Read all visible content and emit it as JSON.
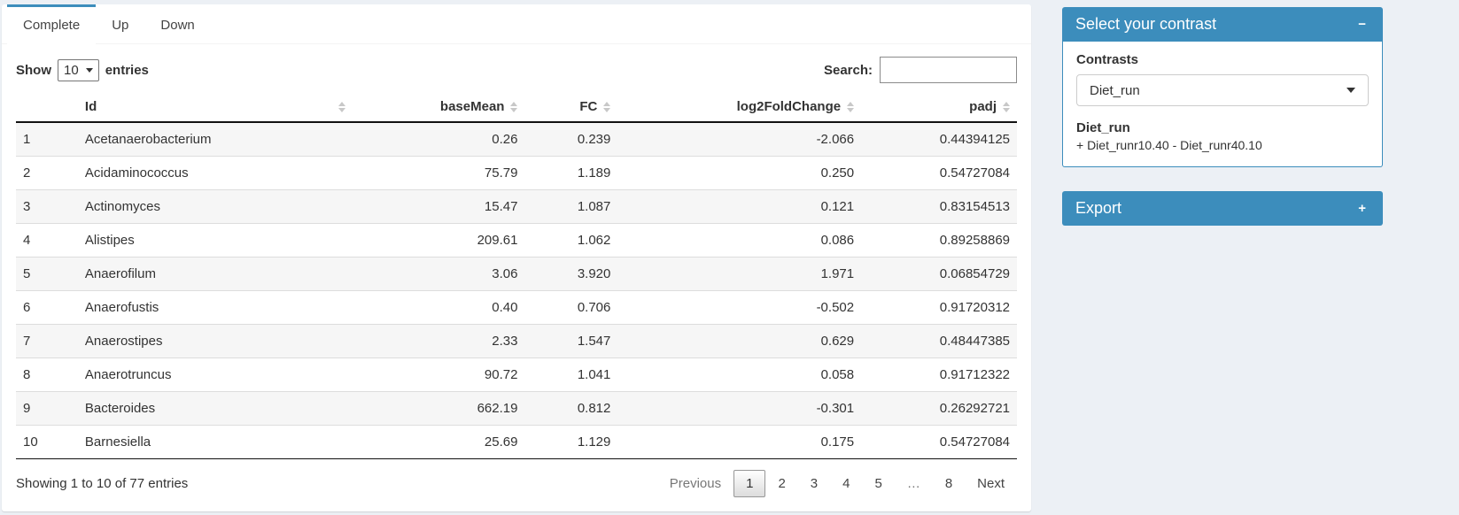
{
  "colors": {
    "accent": "#3c8dbc",
    "page_bg": "#ecf0f5",
    "stripe": "#f6f6f6"
  },
  "tabs": [
    {
      "label": "Complete",
      "active": true
    },
    {
      "label": "Up",
      "active": false
    },
    {
      "label": "Down",
      "active": false
    }
  ],
  "table_controls": {
    "show_label": "Show",
    "page_length": "10",
    "entries_label": "entries",
    "search_label": "Search:",
    "search_value": ""
  },
  "table": {
    "columns": [
      "Id",
      "baseMean",
      "FC",
      "log2FoldChange",
      "padj"
    ],
    "rows": [
      {
        "n": "1",
        "id": "Acetanaerobacterium",
        "baseMean": "0.26",
        "fc": "0.239",
        "log2fc": "-2.066",
        "padj": "0.44394125"
      },
      {
        "n": "2",
        "id": "Acidaminococcus",
        "baseMean": "75.79",
        "fc": "1.189",
        "log2fc": "0.250",
        "padj": "0.54727084"
      },
      {
        "n": "3",
        "id": "Actinomyces",
        "baseMean": "15.47",
        "fc": "1.087",
        "log2fc": "0.121",
        "padj": "0.83154513"
      },
      {
        "n": "4",
        "id": "Alistipes",
        "baseMean": "209.61",
        "fc": "1.062",
        "log2fc": "0.086",
        "padj": "0.89258869"
      },
      {
        "n": "5",
        "id": "Anaerofilum",
        "baseMean": "3.06",
        "fc": "3.920",
        "log2fc": "1.971",
        "padj": "0.06854729"
      },
      {
        "n": "6",
        "id": "Anaerofustis",
        "baseMean": "0.40",
        "fc": "0.706",
        "log2fc": "-0.502",
        "padj": "0.91720312"
      },
      {
        "n": "7",
        "id": "Anaerostipes",
        "baseMean": "2.33",
        "fc": "1.547",
        "log2fc": "0.629",
        "padj": "0.48447385"
      },
      {
        "n": "8",
        "id": "Anaerotruncus",
        "baseMean": "90.72",
        "fc": "1.041",
        "log2fc": "0.058",
        "padj": "0.91712322"
      },
      {
        "n": "9",
        "id": "Bacteroides",
        "baseMean": "662.19",
        "fc": "0.812",
        "log2fc": "-0.301",
        "padj": "0.26292721"
      },
      {
        "n": "10",
        "id": "Barnesiella",
        "baseMean": "25.69",
        "fc": "1.129",
        "log2fc": "0.175",
        "padj": "0.54727084"
      }
    ]
  },
  "table_footer": {
    "info": "Showing 1 to 10 of 77 entries",
    "pagination": {
      "previous": "Previous",
      "pages": [
        "1",
        "2",
        "3",
        "4",
        "5",
        "…",
        "8"
      ],
      "active": "1",
      "next": "Next"
    }
  },
  "contrast_box": {
    "title": "Select your contrast",
    "collapse_icon": "−",
    "contrasts_label": "Contrasts",
    "selected_contrast": "Diet_run",
    "contrast_name": "Diet_run",
    "contrast_formula": "+ Diet_runr10.40 - Diet_runr40.10"
  },
  "export_box": {
    "title": "Export",
    "expand_icon": "+"
  }
}
